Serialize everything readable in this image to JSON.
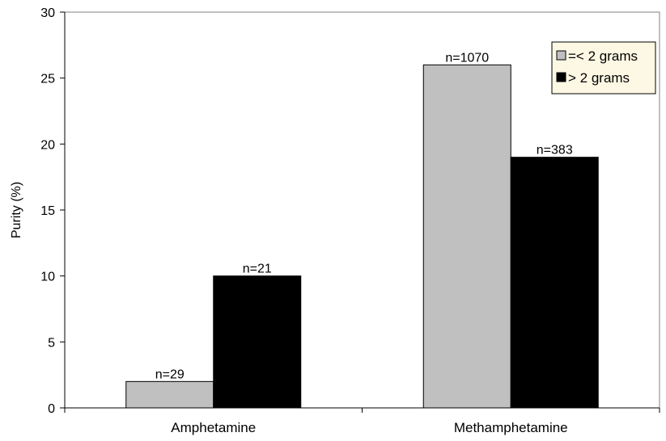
{
  "chart_data": {
    "type": "bar",
    "title": "",
    "xlabel": "",
    "ylabel": "Purity (%)",
    "ylim": [
      0,
      30
    ],
    "yticks": [
      0,
      5,
      10,
      15,
      20,
      25,
      30
    ],
    "categories": [
      "Amphetamine",
      "Methamphetamine"
    ],
    "series": [
      {
        "name": "=< 2 grams",
        "color": "#c0c0c0",
        "values": [
          2,
          26
        ],
        "labels": [
          "n=29",
          "n=1070"
        ]
      },
      {
        "name": "> 2 grams",
        "color": "#000000",
        "values": [
          10,
          19
        ],
        "labels": [
          "n=21",
          "n=383"
        ]
      }
    ],
    "legend": {
      "placement": "top-right",
      "background": "#fdf8e4"
    },
    "grid": false
  }
}
